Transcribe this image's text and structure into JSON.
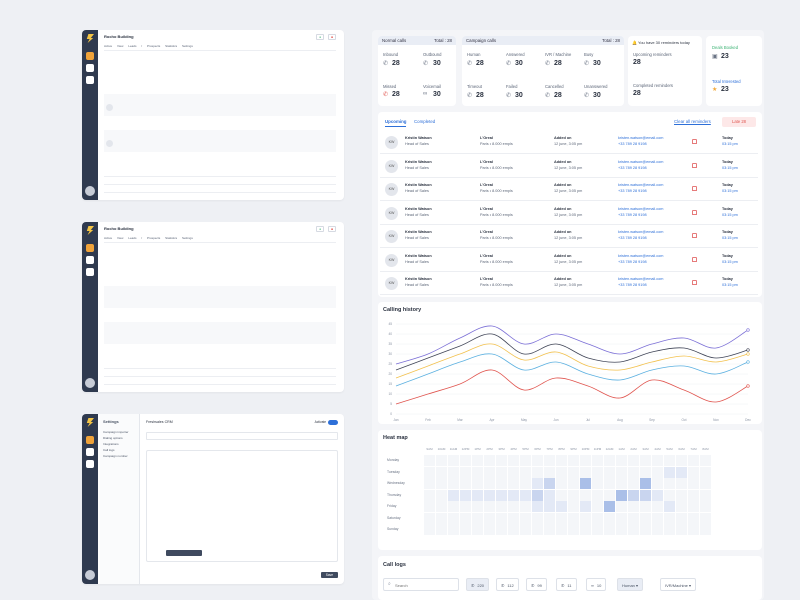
{
  "thumbs": [
    {
      "title": "Rocho Building",
      "tabs": [
        "Active View",
        "Leads / Prospects",
        "Statistics",
        "Settings"
      ]
    },
    {
      "title": "Rocho Building",
      "tabs": [
        "Active View",
        "Leads / Prospects",
        "Statistics",
        "Settings"
      ]
    }
  ],
  "settings_thumb": {
    "title": "Settings",
    "menu": [
      "Campaign importer",
      "Dialing options",
      "Integrations",
      "Call logs",
      "Campaign number"
    ],
    "header": "Freshsales CRM",
    "toggle": "Activate",
    "save": "Save"
  },
  "stats": {
    "normal": {
      "label": "Normal calls",
      "total_label": "Total : 28",
      "items": [
        {
          "label": "Inbound",
          "value": "28",
          "icon": "phone-in-icon"
        },
        {
          "label": "Outbound",
          "value": "30",
          "icon": "phone-out-icon"
        },
        {
          "label": "Missed",
          "value": "28",
          "icon": "phone-missed-icon"
        },
        {
          "label": "Voicemail",
          "value": "30",
          "icon": "voicemail-icon"
        }
      ]
    },
    "campaign": {
      "label": "Campaign calls",
      "total_label": "Total : 28",
      "items": [
        {
          "label": "Human",
          "value": "28",
          "icon": "phone-icon"
        },
        {
          "label": "Answered",
          "value": "30",
          "icon": "phone-icon"
        },
        {
          "label": "IVR / Machine",
          "value": "28",
          "icon": "phone-icon"
        },
        {
          "label": "Busy",
          "value": "30",
          "icon": "phone-icon"
        },
        {
          "label": "Timeout",
          "value": "28",
          "icon": "phone-icon"
        },
        {
          "label": "Failed",
          "value": "30",
          "icon": "phone-icon"
        },
        {
          "label": "Cancelled",
          "value": "28",
          "icon": "phone-icon"
        },
        {
          "label": "Unanswered",
          "value": "30",
          "icon": "phone-icon"
        }
      ]
    },
    "reminders": {
      "notice": "You have 30 reminders today",
      "upcoming_label": "Upcoming reminders",
      "upcoming": "28",
      "completed_label": "Completed reminders",
      "completed": "28"
    },
    "deals": {
      "booked_label": "Deals Booked",
      "booked": "23",
      "interest_label": "Total Interested",
      "interest": "23"
    }
  },
  "reminders": {
    "tabs": [
      "Upcoming",
      "Completed"
    ],
    "clear_label": "Clear all reminders",
    "late_label": "Late 28",
    "rows": [
      {
        "initials": "KW",
        "name": "Kristin Watson",
        "role": "Head of Sales",
        "company": "L'Oreal",
        "size": "Paris • 8.000 empls",
        "added": "Added on",
        "date": "12 june, 3:05 pm",
        "email": "kristen.watson@email.com",
        "phone": "+33 789 28 9198",
        "when": "Today",
        "time": "03:15 pm"
      },
      {
        "initials": "KW",
        "name": "Kristin Watson",
        "role": "Head of Sales",
        "company": "L'Oreal",
        "size": "Paris • 8.000 empls",
        "added": "Added on",
        "date": "12 june, 3:05 pm",
        "email": "kristen.watson@email.com",
        "phone": "+33 789 28 9198",
        "when": "Today",
        "time": "03:15 pm"
      },
      {
        "initials": "KW",
        "name": "Kristin Watson",
        "role": "Head of Sales",
        "company": "L'Oreal",
        "size": "Paris • 8.000 empls",
        "added": "Added on",
        "date": "12 june, 3:05 pm",
        "email": "kristen.watson@email.com",
        "phone": "+33 789 28 9198",
        "when": "Today",
        "time": "03:15 pm"
      },
      {
        "initials": "KW",
        "name": "Kristin Watson",
        "role": "Head of Sales",
        "company": "L'Oreal",
        "size": "Paris • 8.000 empls",
        "added": "Added on",
        "date": "12 june, 3:05 pm",
        "email": "kristen.watson@email.com",
        "phone": "+33 789 28 9198",
        "when": "Today",
        "time": "03:15 pm"
      },
      {
        "initials": "KW",
        "name": "Kristin Watson",
        "role": "Head of Sales",
        "company": "L'Oreal",
        "size": "Paris • 8.000 empls",
        "added": "Added on",
        "date": "12 june, 3:05 pm",
        "email": "kristen.watson@email.com",
        "phone": "+33 789 28 9198",
        "when": "Today",
        "time": "03:15 pm"
      },
      {
        "initials": "KW",
        "name": "Kristin Watson",
        "role": "Head of Sales",
        "company": "L'Oreal",
        "size": "Paris • 8.000 empls",
        "added": "Added on",
        "date": "12 june, 3:05 pm",
        "email": "kristen.watson@email.com",
        "phone": "+33 789 28 9198",
        "when": "Today",
        "time": "03:15 pm"
      },
      {
        "initials": "KW",
        "name": "Kristin Watson",
        "role": "Head of Sales",
        "company": "L'Oreal",
        "size": "Paris • 8.000 empls",
        "added": "Added on",
        "date": "12 june, 3:05 pm",
        "email": "kristen.watson@email.com",
        "phone": "+33 789 28 9198",
        "when": "Today",
        "time": "03:15 pm"
      }
    ]
  },
  "calling_history": {
    "title": "Calling history",
    "chart_data": {
      "type": "line",
      "x": [
        "Jan",
        "Feb",
        "Mar",
        "Apr",
        "May",
        "Jun",
        "Jul",
        "Aug",
        "Sep",
        "Oct",
        "Nov",
        "Dec"
      ],
      "yticks": [
        0,
        5,
        10,
        15,
        20,
        25,
        30,
        35,
        40,
        45
      ],
      "ylim": [
        0,
        45
      ],
      "series": [
        {
          "color": "#7b6fd6",
          "values": [
            25,
            30,
            38,
            44,
            35,
            40,
            35,
            30,
            35,
            38,
            33,
            42
          ]
        },
        {
          "color": "#3f4456",
          "values": [
            22,
            28,
            34,
            40,
            30,
            35,
            28,
            26,
            31,
            33,
            28,
            32
          ]
        },
        {
          "color": "#f2c14e",
          "values": [
            18,
            24,
            30,
            35,
            27,
            31,
            24,
            22,
            26,
            29,
            26,
            30
          ]
        },
        {
          "color": "#5bb0e0",
          "values": [
            14,
            20,
            26,
            30,
            22,
            26,
            20,
            17,
            22,
            24,
            20,
            26
          ]
        },
        {
          "color": "#e0554f",
          "values": [
            5,
            10,
            15,
            22,
            12,
            18,
            14,
            8,
            17,
            12,
            6,
            14
          ]
        }
      ]
    }
  },
  "heatmap": {
    "title": "Heat map",
    "hours": [
      "9AM",
      "10AM",
      "11AM",
      "12PM",
      "1PM",
      "2PM",
      "3PM",
      "4PM",
      "5PM",
      "6PM",
      "7PM",
      "8PM",
      "9PM",
      "10PM",
      "11PM",
      "12AM",
      "1AM",
      "2AM",
      "3AM",
      "4AM",
      "5AM",
      "6AM",
      "7AM",
      "8AM"
    ],
    "days": [
      "Monday",
      "Tuesday",
      "Wednesday",
      "Thursday",
      "Friday",
      "Saturday",
      "Sunday"
    ],
    "cells": [
      {
        "day": 1,
        "hour": 20,
        "v": 1
      },
      {
        "day": 1,
        "hour": 21,
        "v": 1
      },
      {
        "day": 2,
        "hour": 9,
        "v": 1
      },
      {
        "day": 2,
        "hour": 10,
        "v": 2
      },
      {
        "day": 2,
        "hour": 13,
        "v": 3
      },
      {
        "day": 2,
        "hour": 18,
        "v": 3
      },
      {
        "day": 3,
        "hour": 2,
        "v": 1
      },
      {
        "day": 3,
        "hour": 3,
        "v": 1
      },
      {
        "day": 3,
        "hour": 4,
        "v": 1
      },
      {
        "day": 3,
        "hour": 5,
        "v": 1
      },
      {
        "day": 3,
        "hour": 6,
        "v": 1
      },
      {
        "day": 3,
        "hour": 7,
        "v": 1
      },
      {
        "day": 3,
        "hour": 8,
        "v": 1
      },
      {
        "day": 3,
        "hour": 9,
        "v": 2
      },
      {
        "day": 3,
        "hour": 10,
        "v": 1
      },
      {
        "day": 3,
        "hour": 16,
        "v": 3
      },
      {
        "day": 3,
        "hour": 17,
        "v": 2
      },
      {
        "day": 3,
        "hour": 18,
        "v": 2
      },
      {
        "day": 3,
        "hour": 19,
        "v": 1
      },
      {
        "day": 4,
        "hour": 9,
        "v": 1
      },
      {
        "day": 4,
        "hour": 10,
        "v": 1
      },
      {
        "day": 4,
        "hour": 11,
        "v": 1
      },
      {
        "day": 4,
        "hour": 13,
        "v": 1
      },
      {
        "day": 4,
        "hour": 15,
        "v": 3
      },
      {
        "day": 4,
        "hour": 20,
        "v": 1
      }
    ]
  },
  "call_logs": {
    "title": "Call logs",
    "search_placeholder": "Search",
    "filters": [
      {
        "icon": "phone-icon",
        "value": "220",
        "active": true
      },
      {
        "icon": "phone-in-icon",
        "value": "112",
        "active": false
      },
      {
        "icon": "phone-out-icon",
        "value": "99",
        "active": false
      },
      {
        "icon": "phone-missed-icon",
        "value": "11",
        "active": false
      },
      {
        "icon": "voicemail-icon",
        "value": "10",
        "active": false
      }
    ],
    "human_label": "Human",
    "machine_label": "IVR/Machine"
  }
}
